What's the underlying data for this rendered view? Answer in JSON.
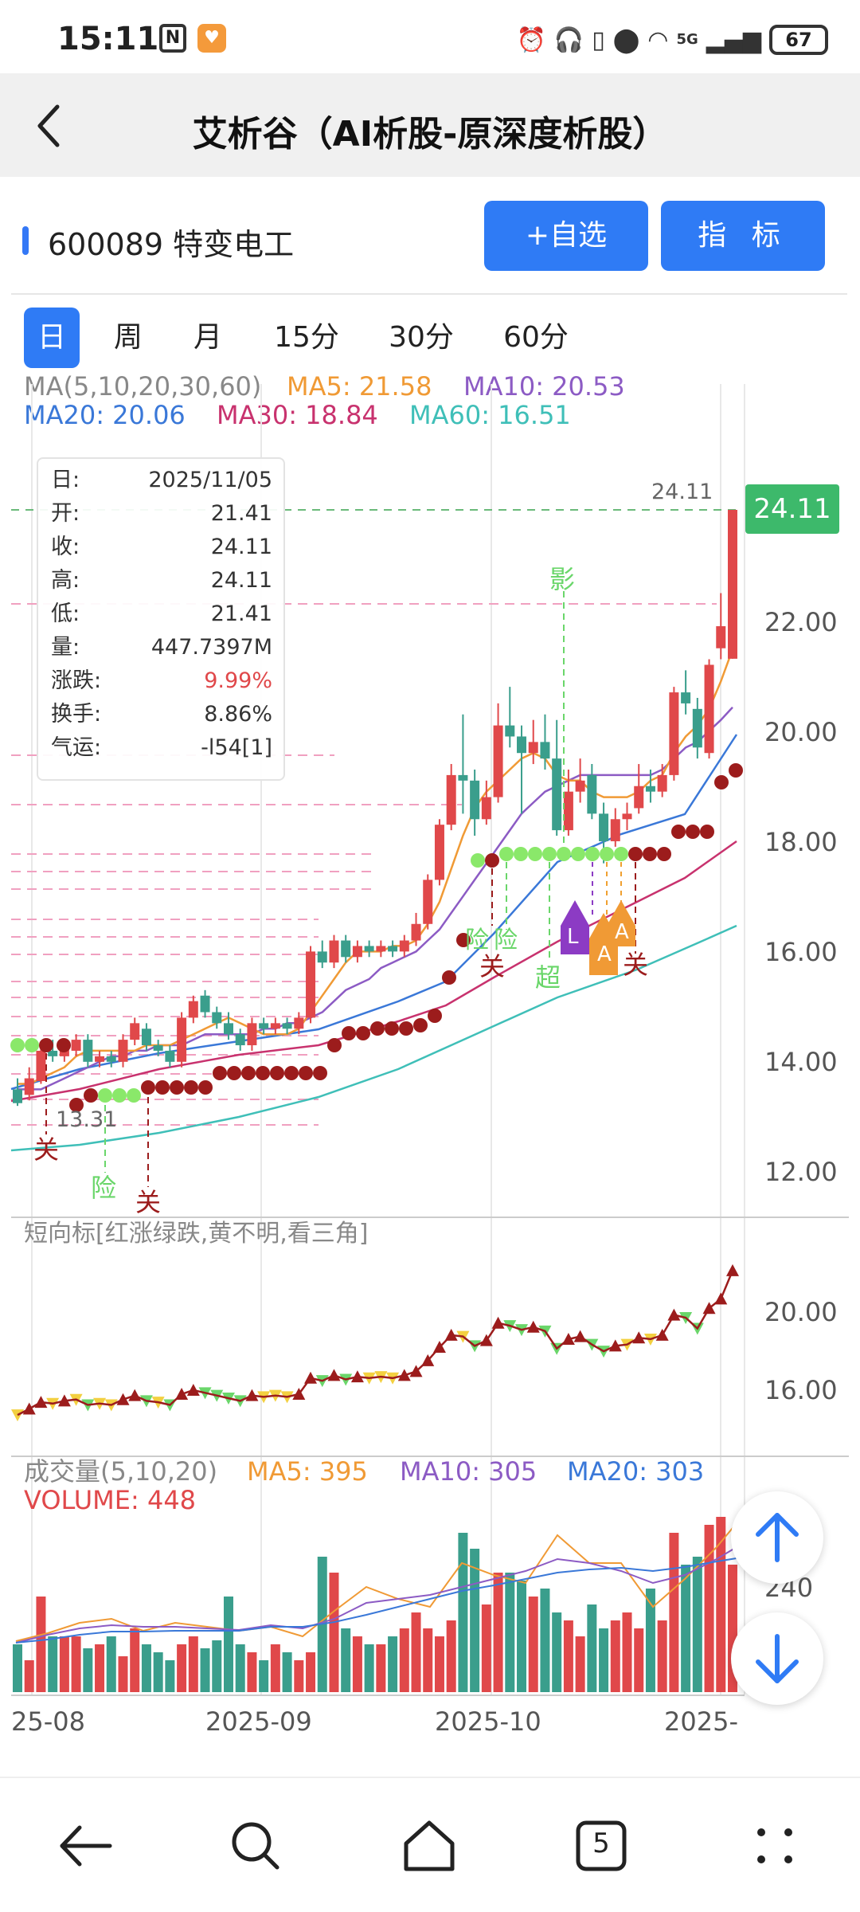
{
  "status_bar": {
    "time": "15:11",
    "n_icon": "N",
    "network": "5G",
    "battery": "67",
    "icons": [
      "alarm-icon",
      "headphones-icon",
      "battery-small-icon",
      "location-icon",
      "wifi-icon",
      "signal-icon"
    ]
  },
  "header": {
    "title": "艾析谷（AI析股-原深度析股）"
  },
  "stock": {
    "name": "600089 特变电工",
    "add_button": "+自选",
    "indicator_button": "指 标"
  },
  "tabs": [
    {
      "label": "日",
      "active": true
    },
    {
      "label": "周",
      "active": false
    },
    {
      "label": "月",
      "active": false
    },
    {
      "label": "15分",
      "active": false
    },
    {
      "label": "30分",
      "active": false
    },
    {
      "label": "60分",
      "active": false
    }
  ],
  "ma_legend": {
    "params": "MA(5,10,20,30,60)",
    "ma5": "MA5: 21.58",
    "ma10": "MA10: 20.53",
    "ma20": "MA20: 20.06",
    "ma30": "MA30: 18.84",
    "ma60": "MA60: 16.51"
  },
  "info": {
    "date_label": "日:",
    "date": "2025/11/05",
    "open_label": "开:",
    "open": "21.41",
    "close_label": "收:",
    "close": "24.11",
    "high_label": "高:",
    "high": "24.11",
    "low_label": "低:",
    "low": "21.41",
    "volume_label": "量:",
    "volume": "447.7397M",
    "change_label": "涨跌:",
    "change": "9.99%",
    "turnover_label": "换手:",
    "turnover": "8.86%",
    "luck_label": "气运:",
    "luck": "-l54[1]"
  },
  "price_tag": "24.11",
  "max_label": "24.11",
  "min_label": "13.31",
  "signal_labels": {
    "guan": "关",
    "xian": "险",
    "chao": "超",
    "ying": "影",
    "l": "L",
    "a": "A"
  },
  "short_panel_title": "短向标[红涨绿跌,黄不明,看三角]",
  "volume_legend": {
    "params": "成交量(5,10,20)",
    "ma5": "MA5: 395",
    "ma10": "MA10: 305",
    "ma20": "MA20: 303",
    "volume": "VOLUME: 448"
  },
  "x_axis_labels": [
    "25-08",
    "2025-09",
    "2025-10",
    "2025-"
  ],
  "price_axis": [
    "22.00",
    "20.00",
    "18.00",
    "16.00",
    "14.00",
    "12.00"
  ],
  "short_axis": [
    "20.00",
    "16.00"
  ],
  "volume_axis": [
    "240"
  ],
  "nav_badge": "5",
  "colors": {
    "up": "#e0484a",
    "down": "#3a9e8c",
    "ma5": "#f09a35",
    "ma10": "#8c5bc4",
    "ma20": "#3a78d8",
    "ma30": "#c8326e",
    "ma60": "#3fbfb8",
    "accent": "#2f7bf5"
  },
  "chart_data": {
    "type": "candlestick",
    "price_unit": "CNY",
    "x_axis": [
      "25-08",
      "2025-09",
      "2025-10",
      "2025-"
    ],
    "ylim_price": [
      11.3,
      25.3
    ],
    "candles": [
      {
        "o": 13.6,
        "c": 13.35,
        "h": 13.8,
        "l": 13.3
      },
      {
        "o": 13.5,
        "c": 13.8,
        "h": 14.0,
        "l": 13.4
      },
      {
        "o": 13.75,
        "c": 14.3,
        "h": 14.4,
        "l": 13.7
      },
      {
        "o": 14.3,
        "c": 14.2,
        "h": 14.5,
        "l": 14.1
      },
      {
        "o": 14.2,
        "c": 14.4,
        "h": 14.5,
        "l": 14.1
      },
      {
        "o": 14.3,
        "c": 14.5,
        "h": 14.6,
        "l": 14.2
      },
      {
        "o": 14.5,
        "c": 14.1,
        "h": 14.6,
        "l": 14.0
      },
      {
        "o": 14.1,
        "c": 14.2,
        "h": 14.3,
        "l": 14.0
      },
      {
        "o": 14.2,
        "c": 14.1,
        "h": 14.3,
        "l": 14.0
      },
      {
        "o": 14.1,
        "c": 14.5,
        "h": 14.6,
        "l": 14.0
      },
      {
        "o": 14.5,
        "c": 14.8,
        "h": 14.9,
        "l": 14.4
      },
      {
        "o": 14.7,
        "c": 14.4,
        "h": 14.8,
        "l": 14.3
      },
      {
        "o": 14.4,
        "c": 14.3,
        "h": 14.5,
        "l": 14.2
      },
      {
        "o": 14.3,
        "c": 14.1,
        "h": 14.4,
        "l": 14.0
      },
      {
        "o": 14.1,
        "c": 14.9,
        "h": 15.0,
        "l": 14.0
      },
      {
        "o": 14.9,
        "c": 15.2,
        "h": 15.3,
        "l": 14.8
      },
      {
        "o": 15.3,
        "c": 15.0,
        "h": 15.4,
        "l": 14.9
      },
      {
        "o": 15.0,
        "c": 14.8,
        "h": 15.1,
        "l": 14.7
      },
      {
        "o": 14.8,
        "c": 14.6,
        "h": 15.0,
        "l": 14.5
      },
      {
        "o": 14.6,
        "c": 14.4,
        "h": 14.7,
        "l": 14.3
      },
      {
        "o": 14.4,
        "c": 14.8,
        "h": 14.9,
        "l": 14.3
      },
      {
        "o": 14.8,
        "c": 14.7,
        "h": 14.9,
        "l": 14.6
      },
      {
        "o": 14.7,
        "c": 14.8,
        "h": 14.9,
        "l": 14.6
      },
      {
        "o": 14.8,
        "c": 14.7,
        "h": 14.9,
        "l": 14.6
      },
      {
        "o": 14.7,
        "c": 14.9,
        "h": 15.0,
        "l": 14.6
      },
      {
        "o": 14.9,
        "c": 16.1,
        "h": 16.2,
        "l": 14.8
      },
      {
        "o": 16.1,
        "c": 15.9,
        "h": 16.3,
        "l": 15.8
      },
      {
        "o": 15.9,
        "c": 16.3,
        "h": 16.4,
        "l": 15.8
      },
      {
        "o": 16.3,
        "c": 16.0,
        "h": 16.4,
        "l": 15.9
      },
      {
        "o": 16.0,
        "c": 16.2,
        "h": 16.3,
        "l": 15.9
      },
      {
        "o": 16.2,
        "c": 16.1,
        "h": 16.3,
        "l": 16.0
      },
      {
        "o": 16.1,
        "c": 16.2,
        "h": 16.3,
        "l": 16.0
      },
      {
        "o": 16.2,
        "c": 16.1,
        "h": 16.3,
        "l": 16.0
      },
      {
        "o": 16.1,
        "c": 16.3,
        "h": 16.4,
        "l": 16.0
      },
      {
        "o": 16.3,
        "c": 16.6,
        "h": 16.8,
        "l": 16.2
      },
      {
        "o": 16.6,
        "c": 17.4,
        "h": 17.5,
        "l": 16.5
      },
      {
        "o": 17.4,
        "c": 18.4,
        "h": 18.5,
        "l": 17.3
      },
      {
        "o": 18.4,
        "c": 19.3,
        "h": 19.5,
        "l": 18.3
      },
      {
        "o": 19.3,
        "c": 19.2,
        "h": 20.4,
        "l": 18.6
      },
      {
        "o": 19.2,
        "c": 18.5,
        "h": 19.4,
        "l": 18.2
      },
      {
        "o": 18.5,
        "c": 18.9,
        "h": 19.2,
        "l": 18.4
      },
      {
        "o": 18.9,
        "c": 20.2,
        "h": 20.6,
        "l": 18.8
      },
      {
        "o": 20.2,
        "c": 20.0,
        "h": 20.9,
        "l": 19.8
      },
      {
        "o": 20.0,
        "c": 19.7,
        "h": 20.2,
        "l": 18.6
      },
      {
        "o": 19.7,
        "c": 19.9,
        "h": 20.3,
        "l": 19.5
      },
      {
        "o": 19.9,
        "c": 19.6,
        "h": 20.4,
        "l": 19.4
      },
      {
        "o": 19.6,
        "c": 18.3,
        "h": 20.3,
        "l": 18.2
      },
      {
        "o": 18.3,
        "c": 19.0,
        "h": 19.4,
        "l": 18.2
      },
      {
        "o": 19.0,
        "c": 19.2,
        "h": 19.6,
        "l": 18.8
      },
      {
        "o": 19.3,
        "c": 18.6,
        "h": 19.5,
        "l": 18.5
      },
      {
        "o": 18.6,
        "c": 18.1,
        "h": 18.8,
        "l": 17.7
      },
      {
        "o": 18.1,
        "c": 18.5,
        "h": 18.7,
        "l": 18.0
      },
      {
        "o": 18.5,
        "c": 18.6,
        "h": 18.8,
        "l": 18.3
      },
      {
        "o": 18.7,
        "c": 19.1,
        "h": 19.5,
        "l": 18.6
      },
      {
        "o": 19.1,
        "c": 19.0,
        "h": 19.4,
        "l": 18.8
      },
      {
        "o": 19.0,
        "c": 19.3,
        "h": 19.5,
        "l": 18.9
      },
      {
        "o": 19.3,
        "c": 20.8,
        "h": 20.9,
        "l": 19.2
      },
      {
        "o": 20.8,
        "c": 20.6,
        "h": 21.2,
        "l": 20.4
      },
      {
        "o": 20.5,
        "c": 19.8,
        "h": 20.7,
        "l": 19.6
      },
      {
        "o": 19.7,
        "c": 21.3,
        "h": 21.4,
        "l": 19.6
      },
      {
        "o": 21.6,
        "c": 22.0,
        "h": 22.6,
        "l": 21.4
      },
      {
        "o": 21.41,
        "c": 24.11,
        "h": 24.11,
        "l": 21.41
      }
    ],
    "ma_series": [
      {
        "name": "MA5",
        "color": "#f09a35",
        "values": [
          13.7,
          13.7,
          13.8,
          13.9,
          14.0,
          14.2,
          14.3,
          14.3,
          14.3,
          14.3,
          14.3,
          14.4,
          14.4,
          14.4,
          14.5,
          14.6,
          14.7,
          14.8,
          14.9,
          14.8,
          14.7,
          14.6,
          14.6,
          14.6,
          14.7,
          15.0,
          15.3,
          15.6,
          15.9,
          16.1,
          16.1,
          16.1,
          16.2,
          16.2,
          16.3,
          16.6,
          17.0,
          17.6,
          18.2,
          18.7,
          19.0,
          19.2,
          19.4,
          19.6,
          19.7,
          19.6,
          19.3,
          19.2,
          19.2,
          19.0,
          18.9,
          18.9,
          18.9,
          19.0,
          19.2,
          19.3,
          19.7,
          20.0,
          20.2,
          20.5,
          21.0,
          21.58
        ]
      },
      {
        "name": "MA10",
        "color": "#8c5bc4",
        "values": [
          13.6,
          13.6,
          13.6,
          13.7,
          13.8,
          13.9,
          14.0,
          14.1,
          14.2,
          14.2,
          14.3,
          14.3,
          14.4,
          14.4,
          14.4,
          14.5,
          14.6,
          14.6,
          14.6,
          14.6,
          14.6,
          14.7,
          14.7,
          14.8,
          14.8,
          14.9,
          15.0,
          15.2,
          15.4,
          15.5,
          15.6,
          15.8,
          15.9,
          16.0,
          16.1,
          16.3,
          16.5,
          16.8,
          17.1,
          17.4,
          17.7,
          18.0,
          18.3,
          18.6,
          18.8,
          19.0,
          19.1,
          19.2,
          19.3,
          19.3,
          19.3,
          19.3,
          19.3,
          19.3,
          19.3,
          19.4,
          19.6,
          19.8,
          19.9,
          20.1,
          20.3,
          20.53
        ]
      }
    ],
    "volume_series": {
      "name": "VOLUME",
      "last": 448,
      "ma5": 395,
      "ma10": 305,
      "ma20": 303
    }
  }
}
